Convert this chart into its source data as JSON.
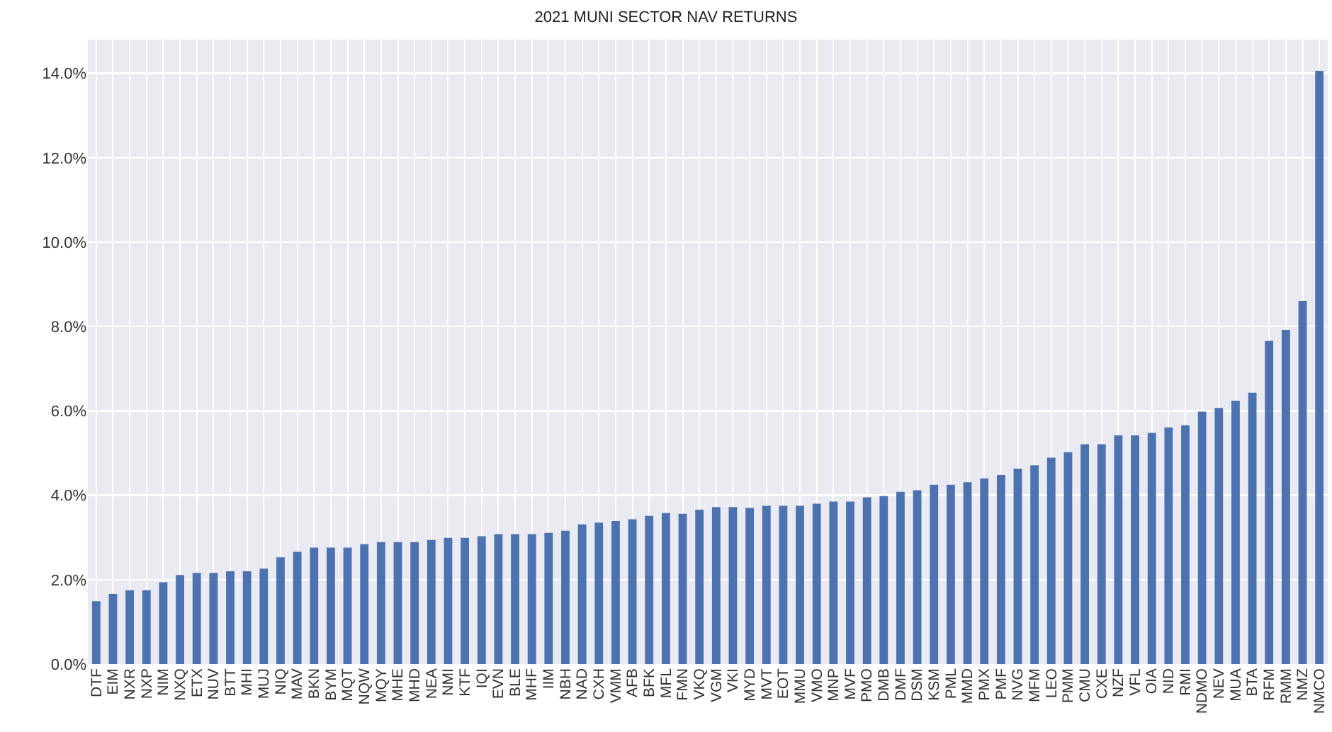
{
  "chart_data": {
    "type": "bar",
    "title": "2021 MUNI SECTOR NAV RETURNS",
    "categories": [
      "DTF",
      "EIM",
      "NXR",
      "NXP",
      "NIM",
      "NXQ",
      "ETX",
      "NUV",
      "BTT",
      "MHI",
      "MUJ",
      "NIQ",
      "MAV",
      "BKN",
      "BYM",
      "MQT",
      "NQW",
      "MQY",
      "MHE",
      "MHD",
      "NEA",
      "NMI",
      "KTF",
      "IQI",
      "EVN",
      "BLE",
      "MHF",
      "IIM",
      "NBH",
      "NAD",
      "CXH",
      "VMM",
      "AFB",
      "BFK",
      "MFL",
      "FMN",
      "VKQ",
      "VGM",
      "VKI",
      "MYD",
      "MVT",
      "EOT",
      "MMU",
      "VMO",
      "MNP",
      "MVF",
      "PMO",
      "DMB",
      "DMF",
      "DSM",
      "KSM",
      "PML",
      "MMD",
      "PMX",
      "PMF",
      "NVG",
      "MFM",
      "LEO",
      "PMM",
      "CMU",
      "CXE",
      "NZF",
      "VFL",
      "OIA",
      "NID",
      "RMI",
      "NDMO",
      "NEV",
      "MUA",
      "BTA",
      "RFM",
      "RMM",
      "NMZ",
      "NMCO"
    ],
    "values": [
      1.49,
      1.66,
      1.75,
      1.75,
      1.94,
      2.11,
      2.16,
      2.16,
      2.2,
      2.2,
      2.26,
      2.53,
      2.66,
      2.76,
      2.76,
      2.76,
      2.84,
      2.89,
      2.89,
      2.89,
      2.94,
      2.99,
      2.99,
      3.03,
      3.08,
      3.08,
      3.08,
      3.11,
      3.16,
      3.31,
      3.35,
      3.39,
      3.43,
      3.51,
      3.58,
      3.56,
      3.66,
      3.72,
      3.72,
      3.7,
      3.75,
      3.75,
      3.75,
      3.8,
      3.85,
      3.85,
      3.95,
      3.98,
      4.08,
      4.12,
      4.25,
      4.25,
      4.31,
      4.4,
      4.48,
      4.63,
      4.71,
      4.89,
      5.02,
      5.21,
      5.21,
      5.42,
      5.42,
      5.48,
      5.61,
      5.66,
      5.98,
      6.07,
      6.24,
      6.43,
      7.66,
      7.92,
      8.61,
      14.06
    ],
    "color": "#4c72b0",
    "ylim": [
      0,
      14.8
    ],
    "yticks": [
      {
        "value": 0,
        "label": "0.0%"
      },
      {
        "value": 2,
        "label": "2.0%"
      },
      {
        "value": 4,
        "label": "4.0%"
      },
      {
        "value": 6,
        "label": "6.0%"
      },
      {
        "value": 8,
        "label": "8.0%"
      },
      {
        "value": 10,
        "label": "10.0%"
      },
      {
        "value": 12,
        "label": "12.0%"
      },
      {
        "value": 14,
        "label": "14.0%"
      }
    ],
    "grid": true
  }
}
